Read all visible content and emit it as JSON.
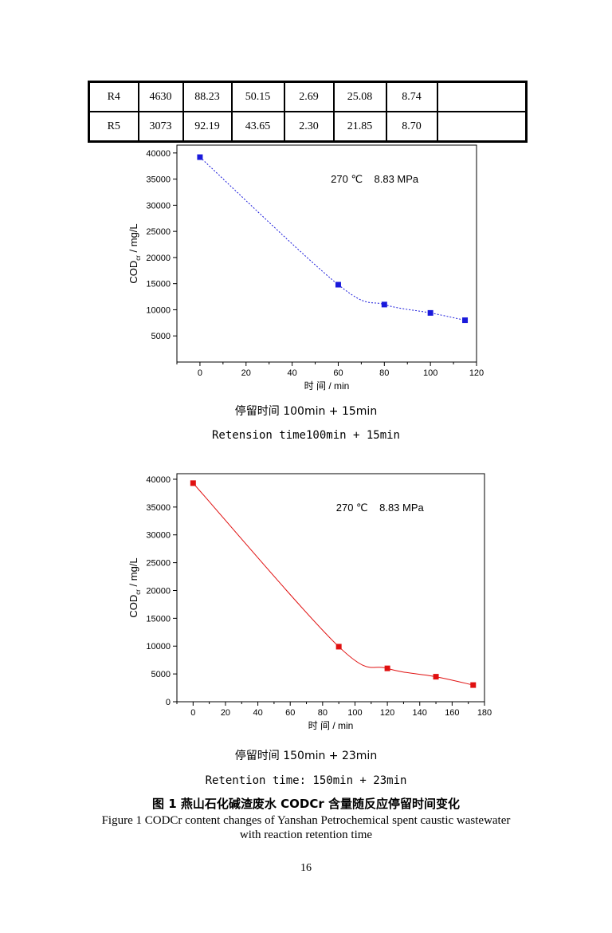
{
  "table": {
    "rows": [
      [
        "R4",
        "4630",
        "88.23",
        "50.15",
        "2.69",
        "25.08",
        "8.74",
        ""
      ],
      [
        "R5",
        "3073",
        "92.19",
        "43.65",
        "2.30",
        "21.85",
        "8.70",
        ""
      ]
    ]
  },
  "chart_data": [
    {
      "type": "line",
      "annotation": "270 ℃    8.83 MPa",
      "xlabel": "时 间 / min",
      "ylabel": "COD",
      "ylabel_sub": "cr",
      "ylabel_unit": " / mg/L",
      "xlim": [
        -10,
        120
      ],
      "ylim": [
        0,
        41500
      ],
      "xticks": [
        0,
        20,
        40,
        60,
        80,
        100,
        120
      ],
      "yticks": [
        5000,
        10000,
        15000,
        20000,
        25000,
        30000,
        35000,
        40000
      ],
      "series": [
        {
          "color": "#1a1adb",
          "dashed": true,
          "x": [
            0,
            60,
            80,
            100,
            115
          ],
          "y": [
            39200,
            14800,
            11000,
            9400,
            8000
          ]
        }
      ]
    },
    {
      "type": "line",
      "annotation": "270 ℃    8.83 MPa",
      "xlabel": "时 间 / min",
      "ylabel": "COD",
      "ylabel_sub": "cr",
      "ylabel_unit": " / mg/L",
      "xlim": [
        -10,
        180
      ],
      "ylim": [
        0,
        41000
      ],
      "xticks": [
        0,
        20,
        40,
        60,
        80,
        100,
        120,
        140,
        160,
        180
      ],
      "yticks": [
        0,
        5000,
        10000,
        15000,
        20000,
        25000,
        30000,
        35000,
        40000
      ],
      "series": [
        {
          "color": "#e01010",
          "dashed": false,
          "x": [
            0,
            90,
            120,
            150,
            173
          ],
          "y": [
            39300,
            9900,
            6000,
            4500,
            3000
          ]
        }
      ]
    }
  ],
  "captions": {
    "c1_cn": "停留时间 100min + 15min",
    "c1_en": "Retension time100min + 15min",
    "c2_cn": "停留时间 150min + 23min",
    "c2_en": "Retention time: 150min + 23min",
    "fig_cn": "图 1  燕山石化碱渣废水 CODCr 含量随反应停留时间变化",
    "fig_en_1": "Figure 1 CODCr content changes of Yanshan Petrochemical spent caustic wastewater",
    "fig_en_2": "with reaction retention time"
  },
  "page_number": "16"
}
